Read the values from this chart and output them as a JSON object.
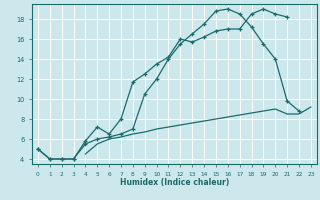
{
  "xlabel": "Humidex (Indice chaleur)",
  "bg_color": "#cce8ec",
  "grid_color": "#ffffff",
  "line_color": "#1a6b6b",
  "xlim": [
    -0.5,
    23.5
  ],
  "ylim": [
    3.5,
    19.5
  ],
  "yticks": [
    4,
    6,
    8,
    10,
    12,
    14,
    16,
    18
  ],
  "xticks": [
    0,
    1,
    2,
    3,
    4,
    5,
    6,
    7,
    8,
    9,
    10,
    11,
    12,
    13,
    14,
    15,
    16,
    17,
    18,
    19,
    20,
    21,
    22,
    23
  ],
  "c1x": [
    0,
    1,
    2,
    3,
    4,
    5,
    6,
    7,
    8,
    9,
    10,
    11,
    12,
    13,
    14,
    15,
    16,
    17,
    18,
    19,
    20,
    21
  ],
  "c1y": [
    5.0,
    4.0,
    4.0,
    4.0,
    5.8,
    7.2,
    6.5,
    8.0,
    11.7,
    12.5,
    13.5,
    14.2,
    16.0,
    15.7,
    16.2,
    16.8,
    17.0,
    17.0,
    18.5,
    19.0,
    18.5,
    18.2
  ],
  "c2x": [
    0,
    1,
    2,
    3,
    4,
    5,
    6,
    7,
    8,
    9,
    10,
    11,
    12,
    13,
    14,
    15,
    16,
    17,
    18,
    19,
    20,
    21,
    22
  ],
  "c2y": [
    5.0,
    4.0,
    4.0,
    4.0,
    5.5,
    6.0,
    6.2,
    6.5,
    7.0,
    10.5,
    12.0,
    14.0,
    15.5,
    16.5,
    17.5,
    18.8,
    19.0,
    18.5,
    17.2,
    15.5,
    14.0,
    9.8,
    8.8
  ],
  "c3x": [
    4,
    5,
    6,
    7,
    8,
    9,
    10,
    11,
    12,
    13,
    14,
    15,
    16,
    17,
    18,
    19,
    20,
    21,
    22,
    23
  ],
  "c3y": [
    4.5,
    5.5,
    6.0,
    6.2,
    6.5,
    6.7,
    7.0,
    7.2,
    7.4,
    7.6,
    7.8,
    8.0,
    8.2,
    8.4,
    8.6,
    8.8,
    9.0,
    8.5,
    8.5,
    9.2
  ]
}
